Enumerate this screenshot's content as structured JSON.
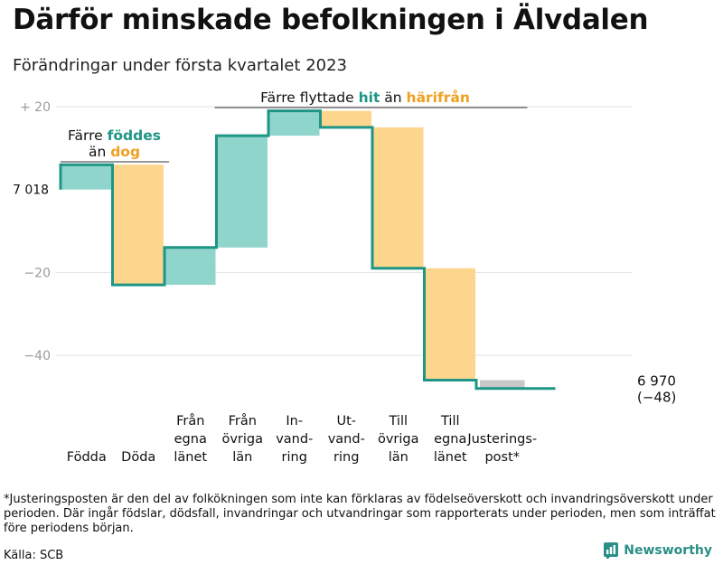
{
  "title": "Därför minskade befolkningen i Älvdalen",
  "subtitle": "Förändringar under första kvartalet 2023",
  "colors": {
    "line": "#1e9585",
    "increase": "#8fd5cc",
    "decrease": "#fdd68e",
    "adjustment": "#c8c8c8",
    "accent_teal": "#1e9585",
    "accent_orange": "#f0a020"
  },
  "chart_data": {
    "type": "waterfall",
    "start_value": 7018,
    "start_label": "7 018",
    "end_value": 6970,
    "end_label": "6 970",
    "end_change_label": "(−48)",
    "ylim": [
      -52,
      24
    ],
    "yticks": [
      {
        "value": 20,
        "label": "+ 20"
      },
      {
        "value": 0,
        "label": "7 018"
      },
      {
        "value": -20,
        "label": "−20"
      },
      {
        "value": -40,
        "label": "−40"
      }
    ],
    "steps": [
      {
        "label": "Födda",
        "lines": [
          "Födda"
        ],
        "change": 6,
        "kind": "increase"
      },
      {
        "label": "Döda",
        "lines": [
          "Döda"
        ],
        "change": -29,
        "kind": "decrease"
      },
      {
        "label": "Från egna länet",
        "lines": [
          "Från",
          "egna",
          "länet"
        ],
        "change": 9,
        "kind": "increase"
      },
      {
        "label": "Från övriga län",
        "lines": [
          "Från",
          "övriga",
          "län"
        ],
        "change": 27,
        "kind": "increase"
      },
      {
        "label": "Invandring",
        "lines": [
          "In-",
          "vand-",
          "ring"
        ],
        "change": 6,
        "kind": "increase"
      },
      {
        "label": "Utvandring",
        "lines": [
          "Ut-",
          "vand-",
          "ring"
        ],
        "change": -4,
        "kind": "decrease"
      },
      {
        "label": "Till övriga län",
        "lines": [
          "Till",
          "övriga",
          "län"
        ],
        "change": -34,
        "kind": "decrease"
      },
      {
        "label": "Till egna länet",
        "lines": [
          "Till",
          "egna",
          "länet"
        ],
        "change": -27,
        "kind": "decrease"
      },
      {
        "label": "Justeringspost*",
        "lines": [
          "Justerings-",
          "post*"
        ],
        "change": -2,
        "kind": "adjustment"
      }
    ],
    "annotations": {
      "births_deaths": {
        "line1": "Färre ",
        "line1_hl": "föddes",
        "line2": "än ",
        "line2_hl": "dog"
      },
      "migration": {
        "prefix": "Färre flyttade ",
        "hl1": "hit",
        "middle": " än ",
        "hl2": "härifrån"
      }
    }
  },
  "footnote": "*Justeringsposten är den del av folkökningen som inte kan förklaras av födelseöverskott och invandringsöverskott under perioden. Där ingår födslar, dödsfall, invandringar och utvandringar som rapporterats under perioden, men som inträffat före periodens början.",
  "source": "Källa: SCB",
  "brand": {
    "name": "Newsworthy",
    "icon": "bar-chart-icon"
  }
}
